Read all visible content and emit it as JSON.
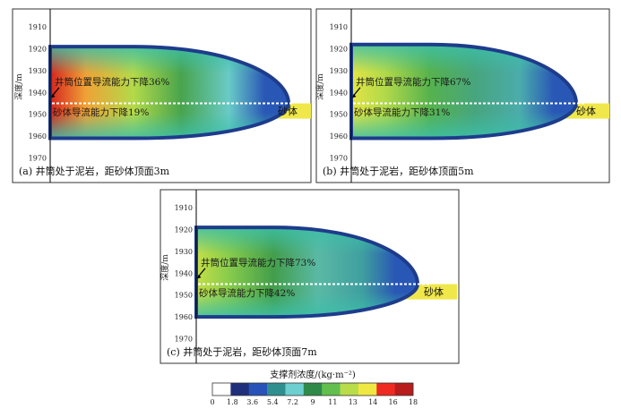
{
  "chart_data": {
    "type": "heatmap",
    "title": "",
    "shared": {
      "ylabel": "深度/m",
      "y_ticks": [
        "1910",
        "1920",
        "1930",
        "1940",
        "1950",
        "1960",
        "1970"
      ],
      "ylim": [
        1905,
        1978
      ],
      "wellbore_depth_m": 1945,
      "sand_top_m": 1945,
      "sand_bottom_m": 1952,
      "sand_label": "砂体"
    },
    "panels": [
      {
        "id": "a",
        "caption": "(a) 井筒处于泥岩，距砂体顶面3m",
        "wellbore_annotation": "井筒位置导流能力下降36%",
        "sand_annotation": "砂体导流能力下降19%",
        "well_reduction_pct": 36,
        "sand_reduction_pct": 19,
        "fracture_top_m": 1919,
        "fracture_bottom_m": 1961,
        "peak_concentration_kg_m2": 17
      },
      {
        "id": "b",
        "caption": "(b) 井筒处于泥岩，距砂体顶面5m",
        "wellbore_annotation": "井筒位置导流能力下降67%",
        "sand_annotation": "砂体导流能力下降31%",
        "well_reduction_pct": 67,
        "sand_reduction_pct": 31,
        "fracture_top_m": 1918,
        "fracture_bottom_m": 1961,
        "peak_concentration_kg_m2": 14
      },
      {
        "id": "c",
        "caption": "(c) 井筒处于泥岩，距砂体顶面7m",
        "wellbore_annotation": "井筒位置导流能力下降73%",
        "sand_annotation": "砂体导流能力下降42%",
        "well_reduction_pct": 73,
        "sand_reduction_pct": 42,
        "fracture_top_m": 1919,
        "fracture_bottom_m": 1960,
        "peak_concentration_kg_m2": 13
      }
    ],
    "colorbar": {
      "title": "支撑剂浓度/(kg·m⁻²)",
      "ticks": [
        "0",
        "1.8",
        "3.6",
        "5.4",
        "7.2",
        "9",
        "11",
        "13",
        "14",
        "16",
        "18"
      ],
      "colors": [
        "#ffffff",
        "#1f2f7a",
        "#2952b8",
        "#2f8f8f",
        "#6dcfcf",
        "#2f8a4a",
        "#62bf4e",
        "#b8dc4a",
        "#f0e842",
        "#ee2a22",
        "#b81c1c"
      ]
    }
  },
  "colors": {
    "sand": "#f0e84a",
    "fracture_edge": "#1e3c8c",
    "wellbore_line": "#ffffff"
  }
}
